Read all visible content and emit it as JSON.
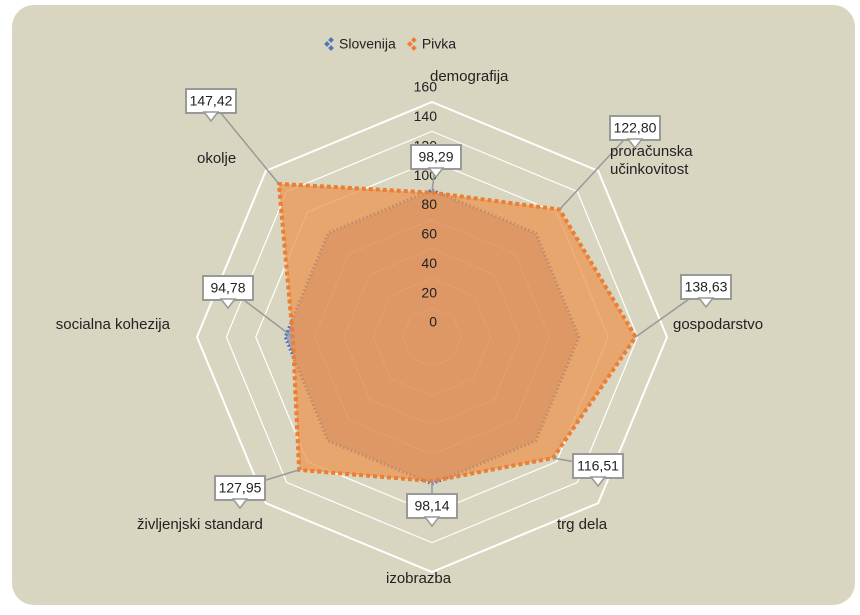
{
  "chart_data": {
    "type": "radar",
    "categories": [
      "demografija",
      "proračunska učinkovitost",
      "gospodarstvo",
      "trg dela",
      "izobrazba",
      "življenjski standard",
      "socialna kohezija",
      "okolje"
    ],
    "series": [
      {
        "name": "Slovenija",
        "color": "#4f74b8",
        "values": [
          100,
          100,
          100,
          100,
          100,
          100,
          100,
          100
        ]
      },
      {
        "name": "Pivka",
        "color": "#ed7d31",
        "values": [
          98.29,
          122.8,
          138.63,
          116.51,
          98.14,
          127.95,
          94.78,
          147.42
        ],
        "value_labels": [
          "98,29",
          "122,80",
          "138,63",
          "116,51",
          "98,14",
          "127,95",
          "94,78",
          "147,42"
        ]
      }
    ],
    "rlim": [
      0,
      160
    ],
    "rticks": [
      0,
      20,
      40,
      60,
      80,
      100,
      120,
      140,
      160
    ],
    "grid": true,
    "legend": "top"
  }
}
